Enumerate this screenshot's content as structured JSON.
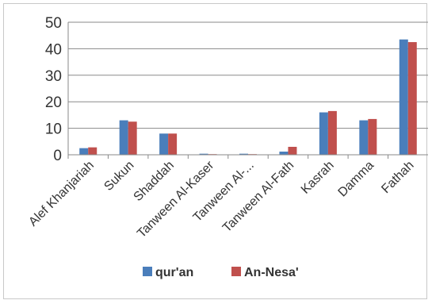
{
  "chart_data": {
    "type": "bar",
    "categories": [
      "Alef Khanjariah",
      "Sukun",
      "Shaddah",
      "Tanween Al-Kaser",
      "Tanween Al-...",
      "Tanween Al-Fath",
      "Kasrah",
      "Damma",
      "Fathah"
    ],
    "series": [
      {
        "name": "qur'an",
        "color": "#4a7ebb",
        "values": [
          2.5,
          13,
          8,
          0.4,
          0.4,
          1.2,
          16,
          13,
          43.5
        ]
      },
      {
        "name": "An-Nesa'",
        "color": "#c0504d",
        "values": [
          2.8,
          12.5,
          8,
          0.2,
          0.2,
          3,
          16.5,
          13.5,
          42.5
        ]
      }
    ],
    "yticks": [
      0,
      10,
      20,
      30,
      40,
      50
    ],
    "ylim": [
      0,
      50
    ],
    "grid": true,
    "legend_position": "bottom"
  }
}
